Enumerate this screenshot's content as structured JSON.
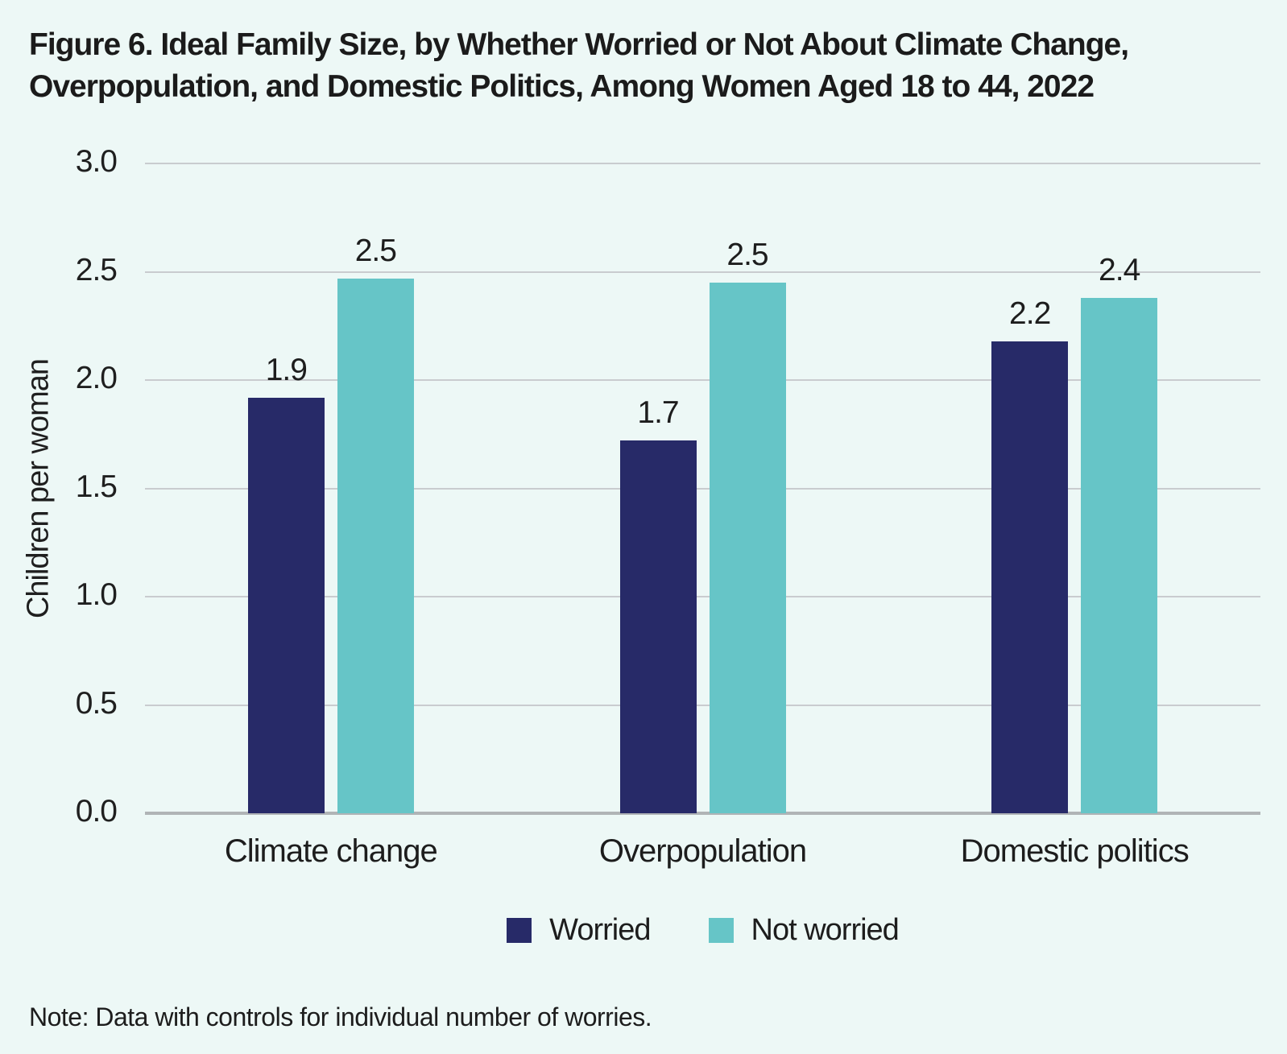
{
  "figure": {
    "title_lines": [
      "Figure 6. Ideal Family Size, by Whether Worried or Not About Climate Change,",
      "Overpopulation, and Domestic Politics, Among Women Aged 18 to 44, 2022"
    ],
    "note": "Note: Data with controls for individual number of worries."
  },
  "colors": {
    "background": "#edf8f6",
    "worried": "#272a68",
    "not_worried": "#66c5c7",
    "gridline": "#c9cccf",
    "axis_line": "#b0b4b6",
    "text": "#1d1d1d"
  },
  "chart_data": {
    "type": "bar",
    "title": "Figure 6. Ideal Family Size, by Whether Worried or Not About Climate Change, Overpopulation, and Domestic Politics, Among Women Aged 18 to 44, 2022",
    "xlabel": "",
    "ylabel": "Children per woman",
    "ylim": [
      0,
      3.0
    ],
    "ytick_step": 0.5,
    "yticks": [
      "3.0",
      "2.5",
      "2.0",
      "1.5",
      "1.0",
      "0.5",
      "0.0"
    ],
    "grid": "horizontal",
    "legend_position": "bottom",
    "categories": [
      "Climate change",
      "Overpopulation",
      "Domestic politics"
    ],
    "series": [
      {
        "name": "Worried",
        "color": "#272a68",
        "values": [
          1.9,
          1.7,
          2.2
        ],
        "bar_tops_precise": [
          1.92,
          1.72,
          2.18
        ]
      },
      {
        "name": "Not worried",
        "color": "#66c5c7",
        "values": [
          2.5,
          2.5,
          2.4
        ],
        "bar_tops_precise": [
          2.47,
          2.45,
          2.38
        ]
      }
    ],
    "note": "Note: Data with controls for individual number of worries."
  }
}
